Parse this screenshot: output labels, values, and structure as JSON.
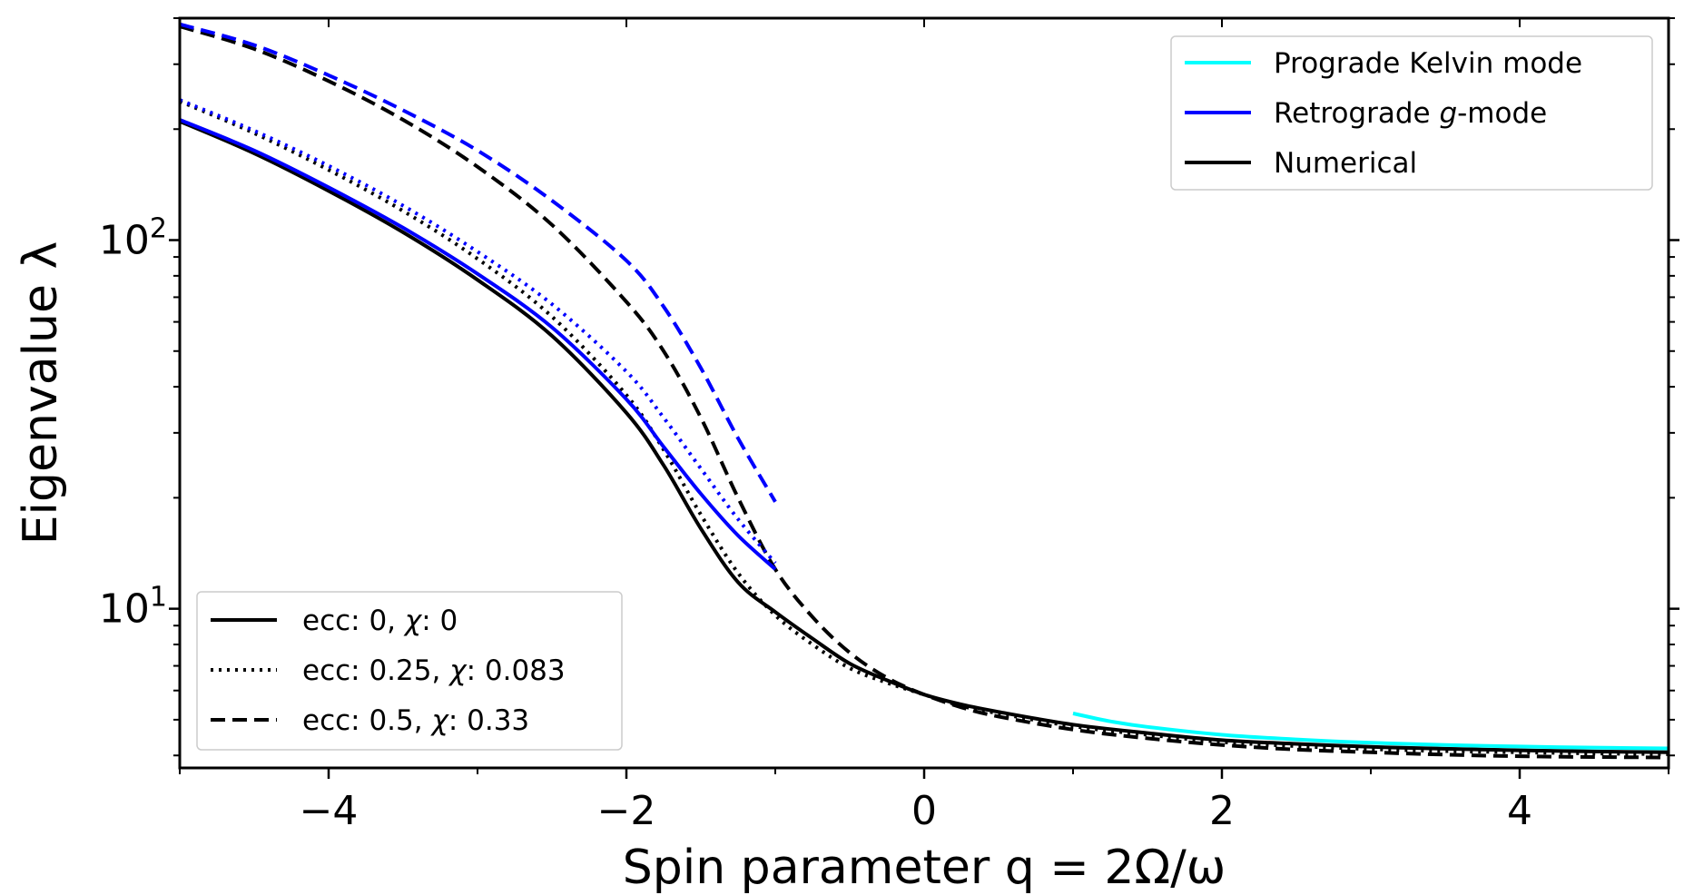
{
  "chart_data": {
    "type": "line",
    "title": "",
    "xlabel": "Spin parameter q = 2Ω/ω",
    "ylabel": "Eigenvalue λ",
    "xlim": [
      -5,
      5
    ],
    "ylim": [
      3.7,
      400
    ],
    "yscale": "log",
    "x_ticks": [
      -4,
      -2,
      0,
      2,
      4
    ],
    "x_tick_labels": [
      "−4",
      "−2",
      "0",
      "2",
      "4"
    ],
    "y_major_ticks": [
      10,
      100
    ],
    "y_tick_base": "10",
    "y_tick_exponents": [
      "1",
      "2"
    ],
    "grid": false,
    "colors": {
      "kelvin": "#00ffff",
      "retrograde": "#0000ff",
      "numerical": "#000000"
    },
    "legend_color": {
      "placement": "top-right",
      "entries": [
        {
          "label_pre": "Prograde Kelvin mode",
          "label_italic": "",
          "label_post": "",
          "color": "#00ffff"
        },
        {
          "label_pre": "Retrograde ",
          "label_italic": "g",
          "label_post": "-mode",
          "color": "#0000ff"
        },
        {
          "label_pre": "Numerical",
          "label_italic": "",
          "label_post": "",
          "color": "#000000"
        }
      ]
    },
    "legend_style": {
      "placement": "bottom-left",
      "entries": [
        {
          "style": "solid",
          "label_pre": "ecc: 0, ",
          "symbol": "χ",
          "label_post": ": 0"
        },
        {
          "style": "dotted",
          "label_pre": "ecc: 0.25, ",
          "symbol": "χ",
          "label_post": ": 0.083"
        },
        {
          "style": "dashed",
          "label_pre": "ecc: 0.5, ",
          "symbol": "χ",
          "label_post": ": 0.33"
        }
      ]
    },
    "series": [
      {
        "name": "Numerical, ecc: 0, χ: 0",
        "color": "#000000",
        "style": "solid",
        "x": [
          -5,
          -4.5,
          -4,
          -3.5,
          -3,
          -2.5,
          -2,
          -1.75,
          -1.5,
          -1.25,
          -1,
          -0.75,
          -0.5,
          -0.25,
          0,
          0.25,
          0.5,
          1,
          1.5,
          2,
          2.5,
          3,
          3.5,
          4,
          4.5,
          5
        ],
        "y": [
          210,
          172,
          136,
          105,
          78,
          55,
          34,
          24.5,
          16.5,
          11.8,
          9.8,
          8.3,
          7.1,
          6.4,
          5.85,
          5.5,
          5.25,
          4.85,
          4.6,
          4.4,
          4.3,
          4.22,
          4.17,
          4.13,
          4.1,
          4.08
        ]
      },
      {
        "name": "Numerical, ecc: 0.25, χ: 0.083",
        "color": "#000000",
        "style": "dotted",
        "x": [
          -5,
          -4.5,
          -4,
          -3.5,
          -3,
          -2.5,
          -2,
          -1.75,
          -1.5,
          -1.25,
          -1,
          -0.75,
          -0.5,
          -0.25,
          0,
          0.25,
          0.5,
          1,
          1.5,
          2,
          2.5,
          3,
          3.5,
          4,
          4.5,
          5
        ],
        "y": [
          238,
          195,
          155,
          120,
          89,
          62,
          38,
          27,
          18,
          12.5,
          9.6,
          8.0,
          6.9,
          6.3,
          5.85,
          5.45,
          5.2,
          4.8,
          4.55,
          4.35,
          4.24,
          4.16,
          4.11,
          4.08,
          4.05,
          4.03
        ]
      },
      {
        "name": "Numerical, ecc: 0.5, χ: 0.33",
        "color": "#000000",
        "style": "dashed",
        "x": [
          -5,
          -4.5,
          -4,
          -3.5,
          -3,
          -2.5,
          -2,
          -1.75,
          -1.5,
          -1.25,
          -1,
          -0.75,
          -0.5,
          -0.25,
          0,
          0.25,
          0.5,
          1,
          1.5,
          2,
          2.5,
          3,
          3.5,
          4,
          4.5,
          5
        ],
        "y": [
          380,
          330,
          270,
          212,
          158,
          110,
          68,
          50,
          33,
          20,
          12.8,
          9.5,
          7.6,
          6.5,
          5.85,
          5.4,
          5.1,
          4.7,
          4.45,
          4.27,
          4.15,
          4.08,
          4.02,
          3.98,
          3.96,
          3.95
        ]
      },
      {
        "name": "Retrograde g-mode, ecc: 0, χ: 0",
        "color": "#0000ff",
        "style": "solid",
        "x": [
          -5,
          -4.5,
          -4,
          -3.5,
          -3,
          -2.5,
          -2,
          -1.75,
          -1.5,
          -1.25,
          -1
        ],
        "y": [
          212,
          175,
          139,
          108,
          81,
          58,
          37,
          27.5,
          20.5,
          15.8,
          12.8
        ]
      },
      {
        "name": "Retrograde g-mode, ecc: 0.25, χ: 0.083",
        "color": "#0000ff",
        "style": "dotted",
        "x": [
          -5,
          -4.5,
          -4,
          -3.5,
          -3,
          -2.5,
          -2,
          -1.75,
          -1.5,
          -1.25,
          -1
        ],
        "y": [
          240,
          198,
          159,
          124,
          93,
          67,
          44,
          33,
          24,
          17.5,
          13.3
        ]
      },
      {
        "name": "Retrograde g-mode, ecc: 0.5, χ: 0.33",
        "color": "#0000ff",
        "style": "dashed",
        "x": [
          -5,
          -4.5,
          -4,
          -3.5,
          -3,
          -2.5,
          -2,
          -1.75,
          -1.5,
          -1.25,
          -1
        ],
        "y": [
          385,
          338,
          280,
          225,
          175,
          128,
          88,
          66,
          45,
          29,
          19.5
        ]
      },
      {
        "name": "Prograde Kelvin mode",
        "color": "#00ffff",
        "style": "solid",
        "x": [
          1,
          1.25,
          1.5,
          2,
          2.5,
          3,
          3.5,
          4,
          4.5,
          5
        ],
        "y": [
          5.2,
          4.95,
          4.78,
          4.55,
          4.42,
          4.33,
          4.27,
          4.23,
          4.2,
          4.18
        ]
      }
    ]
  }
}
